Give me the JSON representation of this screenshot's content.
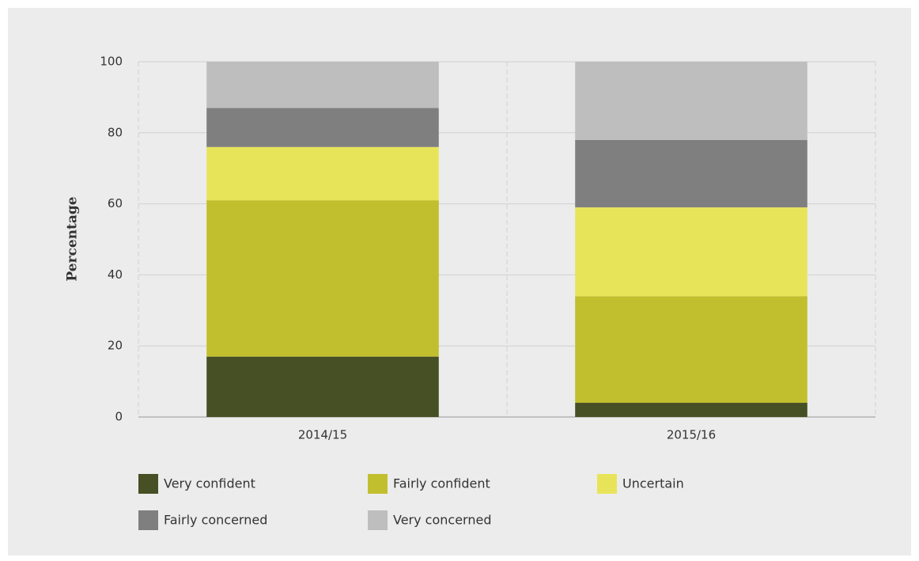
{
  "chart_data": {
    "type": "stacked_bar",
    "y_label": "Percentage",
    "categories": [
      "2014/15",
      "2015/16"
    ],
    "series": [
      {
        "name": "Very confident",
        "color": "#474f24",
        "values": [
          17,
          4
        ]
      },
      {
        "name": "Fairly confident",
        "color": "#c2bf2e",
        "values": [
          44,
          30
        ]
      },
      {
        "name": "Uncertain",
        "color": "#e8e45a",
        "values": [
          15,
          25
        ]
      },
      {
        "name": "Fairly concerned",
        "color": "#7f7f7f",
        "values": [
          11,
          19
        ]
      },
      {
        "name": "Very concerned",
        "color": "#bebebe",
        "values": [
          13,
          22
        ]
      }
    ],
    "ylim": [
      0,
      100
    ],
    "yticks": [
      0,
      20,
      40,
      60,
      80,
      100
    ],
    "grid": true,
    "legend": "bottom"
  }
}
